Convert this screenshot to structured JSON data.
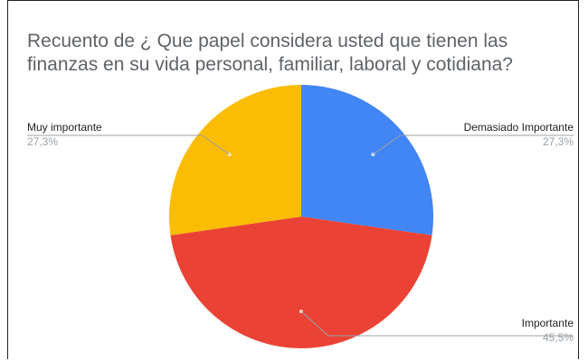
{
  "chart_data": {
    "type": "pie",
    "title": "Recuento de ¿ Que papel considera usted que tienen las finanzas en su vida personal, familiar, laboral y cotidiana?",
    "slices": [
      {
        "label": "Demasiado Importante",
        "value": 27.3,
        "pct_label": "27,3%",
        "color": "#4285f4"
      },
      {
        "label": "Importante",
        "value": 45.5,
        "pct_label": "45,5%",
        "color": "#ea4335"
      },
      {
        "label": "Muy importante",
        "value": 27.3,
        "pct_label": "27,3%",
        "color": "#fbbc04"
      }
    ],
    "start_angle_deg": 0,
    "direction": "clockwise",
    "legend": "labels-outside"
  }
}
